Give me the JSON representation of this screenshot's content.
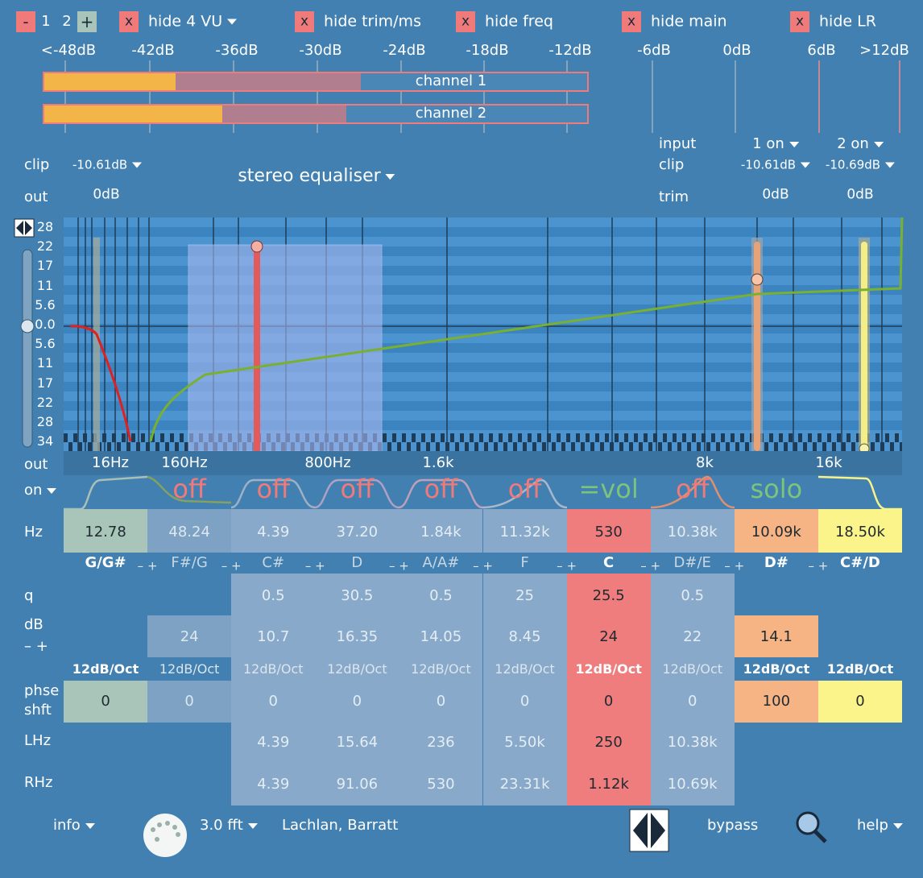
{
  "top_bar": {
    "minus": "-",
    "channels": [
      "1",
      "2"
    ],
    "plus": "+",
    "toggles": [
      {
        "icon": "x",
        "label": "hide 4 VU"
      },
      {
        "icon": "x",
        "label": "hide trim/ms"
      },
      {
        "icon": "x",
        "label": "hide freq"
      },
      {
        "icon": "x",
        "label": "hide main"
      },
      {
        "icon": "x",
        "label": "hide LR"
      }
    ]
  },
  "vu": {
    "scale": [
      "<-48dB",
      "-42dB",
      "-36dB",
      "-30dB",
      "-24dB",
      "-18dB",
      "-12dB",
      "-6dB",
      "0dB",
      "6dB",
      ">12dB"
    ],
    "meters": [
      "channel 1",
      "channel 2"
    ]
  },
  "main": {
    "clip_label": "clip",
    "clip_value": "-10.61dB",
    "out_label": "out",
    "out_value": "0dB",
    "title": "stereo equaliser"
  },
  "inputs": {
    "input_label": "input",
    "clip_label": "clip",
    "trim_label": "trim",
    "channels": [
      {
        "state": "1 on",
        "clip": "-10.61dB",
        "trim": "0dB"
      },
      {
        "state": "2 on",
        "clip": "-10.69dB",
        "trim": "0dB"
      }
    ]
  },
  "graph": {
    "y_labels": [
      "28",
      "22",
      "17",
      "11",
      "5.6",
      "0.0",
      "5.6",
      "11",
      "17",
      "22",
      "28",
      "34"
    ],
    "x_labels": [
      "16Hz",
      "160Hz",
      "800Hz",
      "1.6k",
      "8k",
      "16k"
    ],
    "out_label": "out",
    "on_label": "on"
  },
  "table": {
    "row_labels": {
      "hz": "Hz",
      "q": "q",
      "db": "dB",
      "db_adjust": "– +",
      "phase": [
        "phse",
        "shft"
      ],
      "lhz": "LHz",
      "rhz": "RHz"
    },
    "adjust": "– +",
    "columns": [
      {
        "hz": "12.78",
        "note": "G/G#",
        "slope": "12dB/Oct",
        "phase": "0",
        "color": "#a9c5b9",
        "text_color": "#1e2a30"
      },
      {
        "state": "off",
        "state_color": "#f07a7a",
        "hz": "48.24",
        "note": "F#/G",
        "db": "24",
        "slope": "12dB/Oct",
        "phase": "0",
        "color": "#7ea2c4",
        "text_color": "#dce7f0"
      },
      {
        "state": "off",
        "state_color": "#f07a7a",
        "hz": "4.39",
        "note": "C#",
        "q": "0.5",
        "db": "10.7",
        "slope": "12dB/Oct",
        "phase": "0",
        "lhz": "4.39",
        "rhz": "4.39",
        "color": "#88a9c9",
        "text_color": "#e4edf4"
      },
      {
        "state": "off",
        "state_color": "#f07a7a",
        "hz": "37.20",
        "note": "D",
        "q": "30.5",
        "db": "16.35",
        "slope": "12dB/Oct",
        "phase": "0",
        "lhz": "15.64",
        "rhz": "91.06",
        "color": "#88a9c9",
        "text_color": "#e4edf4"
      },
      {
        "state": "off",
        "state_color": "#f07a7a",
        "hz": "1.84k",
        "note": "A/A#",
        "q": "0.5",
        "db": "14.05",
        "slope": "12dB/Oct",
        "phase": "0",
        "lhz": "236",
        "rhz": "530",
        "color": "#88a9c9",
        "text_color": "#e4edf4"
      },
      {
        "state": "off",
        "state_color": "#f07a7a",
        "hz": "11.32k",
        "note": "F",
        "q": "25",
        "db": "8.45",
        "slope": "12dB/Oct",
        "phase": "0",
        "lhz": "5.50k",
        "rhz": "23.31k",
        "color": "#88a9c9",
        "text_color": "#e4edf4"
      },
      {
        "state": "=vol",
        "state_color": "#7cc47c",
        "hz": "530",
        "note": "C",
        "q": "25.5",
        "db": "24",
        "slope": "12dB/Oct",
        "phase": "0",
        "lhz": "250",
        "rhz": "1.12k",
        "color": "#f07d7d",
        "text_color": "#1e2a30"
      },
      {
        "state": "off",
        "state_color": "#f07a7a",
        "hz": "10.38k",
        "note": "D#/E",
        "q": "0.5",
        "db": "22",
        "slope": "12dB/Oct",
        "phase": "0",
        "lhz": "10.38k",
        "rhz": "10.69k",
        "color": "#88a9c9",
        "text_color": "#e4edf4"
      },
      {
        "state": "solo",
        "state_color": "#7cc47c",
        "hz": "10.09k",
        "note": "D#",
        "db": "14.1",
        "slope": "12dB/Oct",
        "phase": "100",
        "color": "#f6b485",
        "text_color": "#1e2a30"
      },
      {
        "hz": "18.50k",
        "note": "C#/D",
        "slope": "12dB/Oct",
        "phase": "0",
        "color": "#fbf48b",
        "text_color": "#1e2a30"
      }
    ]
  },
  "footer": {
    "info": "info",
    "fft": "3.0 fft",
    "author": "Lachlan, Barratt",
    "bypass": "bypass",
    "help": "help"
  }
}
